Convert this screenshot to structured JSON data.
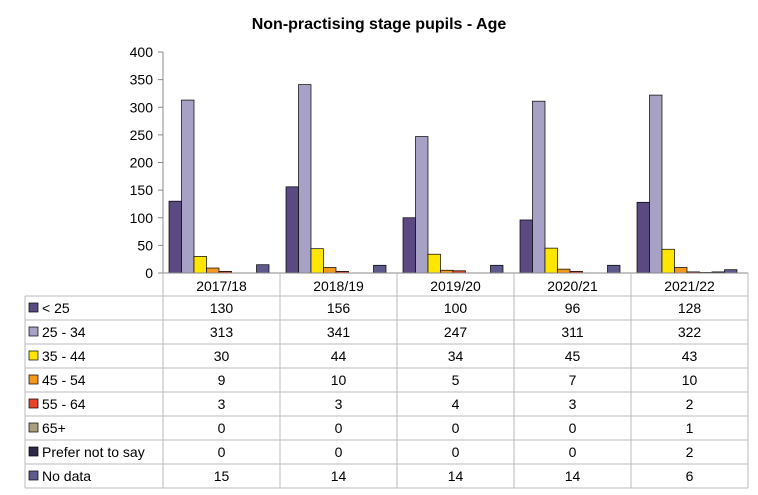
{
  "chart_data": {
    "type": "bar",
    "title": "Non-practising stage pupils - Age",
    "categories": [
      "2017/18",
      "2018/19",
      "2019/20",
      "2020/21",
      "2021/22"
    ],
    "ylim": [
      0,
      400
    ],
    "yticks": [
      0,
      50,
      100,
      150,
      200,
      250,
      300,
      350,
      400
    ],
    "grid": false,
    "legend": "data-table",
    "series": [
      {
        "name": "< 25",
        "color": "#5b4a82",
        "values": [
          130,
          156,
          100,
          96,
          128
        ],
        "labels": [
          "130",
          "156",
          "100",
          "96",
          "128"
        ]
      },
      {
        "name": "25 - 34",
        "color": "#a7a1c6",
        "values": [
          313,
          341,
          247,
          311,
          322
        ],
        "labels": [
          "313",
          "341",
          "247",
          "311",
          "322"
        ]
      },
      {
        "name": "35 - 44",
        "color": "#ffe600",
        "values": [
          30,
          44,
          34,
          45,
          43
        ],
        "labels": [
          "30",
          "44",
          "34",
          "45",
          "43"
        ]
      },
      {
        "name": "45 - 54",
        "color": "#f39a1e",
        "values": [
          9,
          10,
          5,
          7,
          10
        ],
        "labels": [
          "9",
          "10",
          "5",
          "7",
          "10"
        ]
      },
      {
        "name": "55 - 64",
        "color": "#e8452c",
        "values": [
          3,
          3,
          4,
          3,
          2
        ],
        "labels": [
          "3",
          "3",
          "4",
          "3",
          "2"
        ]
      },
      {
        "name": "65+",
        "color": "#a8a07c",
        "values": [
          0,
          0,
          0,
          0,
          1
        ],
        "labels": [
          "0",
          "0",
          "0",
          "0",
          "1"
        ]
      },
      {
        "name": "Prefer not to say",
        "color": "#2e2846",
        "values": [
          0,
          0,
          0,
          0,
          2
        ],
        "labels": [
          "0",
          "0",
          "0",
          "0",
          "2"
        ]
      },
      {
        "name": "No data",
        "color": "#5e5a8e",
        "values": [
          15,
          14,
          14,
          14,
          6
        ],
        "labels": [
          "15",
          "14",
          "14",
          "14",
          "6"
        ]
      }
    ]
  }
}
